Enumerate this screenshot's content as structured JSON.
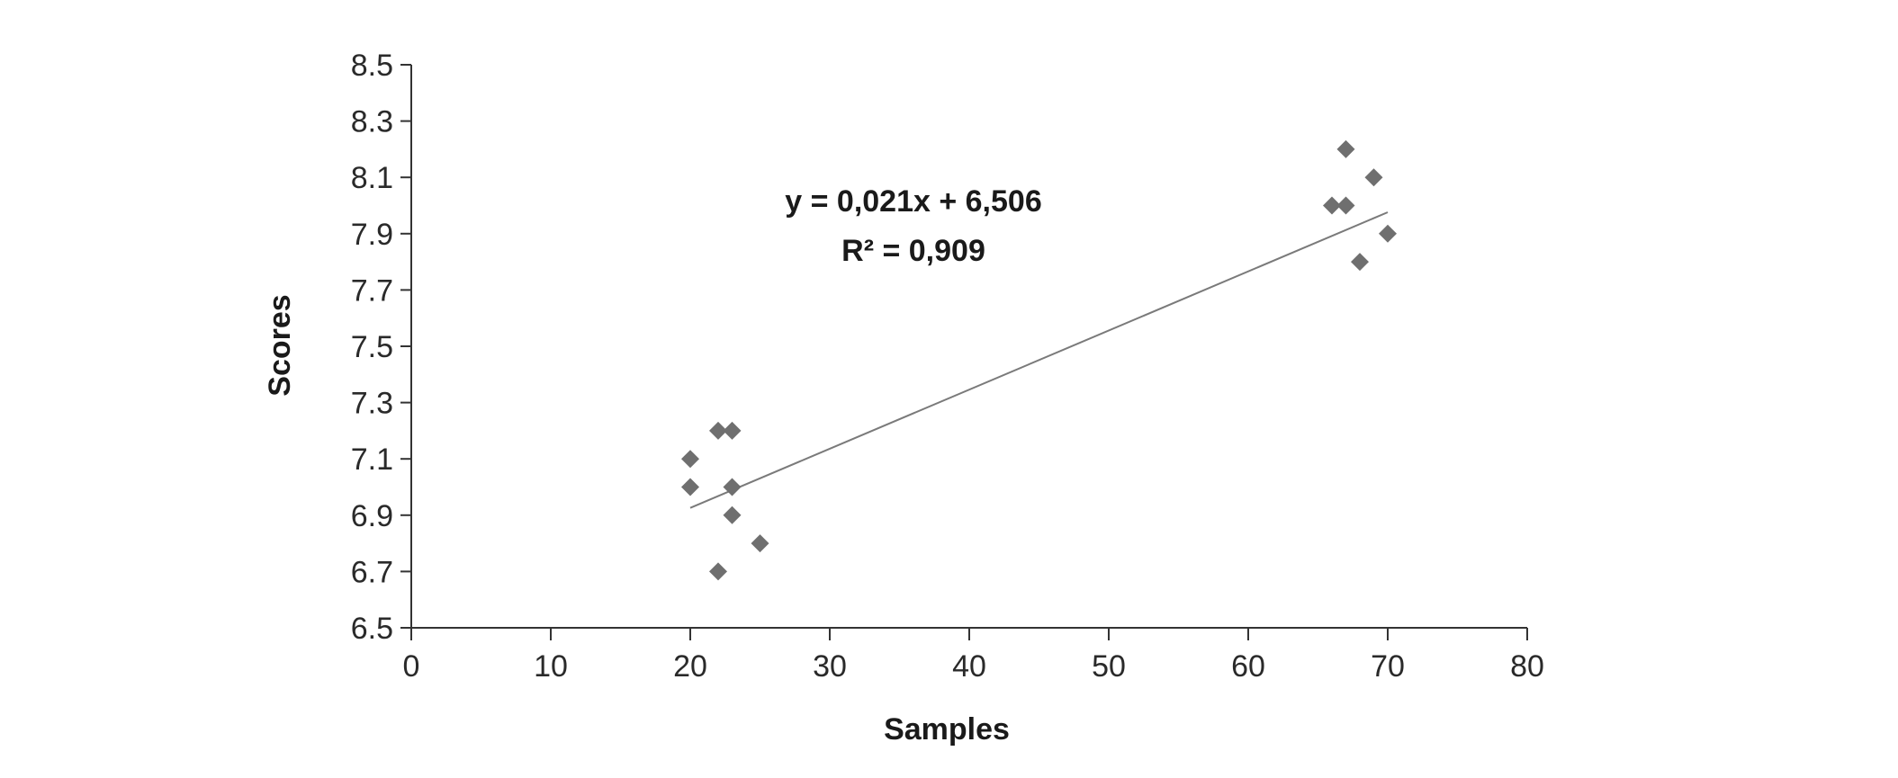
{
  "chart_data": {
    "type": "scatter",
    "title": "",
    "xlabel": "Samples",
    "ylabel": "Scores",
    "xlim": [
      0,
      80
    ],
    "ylim": [
      6.5,
      8.5
    ],
    "xticks": [
      "0",
      "10",
      "20",
      "30",
      "40",
      "50",
      "60",
      "70",
      "80"
    ],
    "yticks": [
      "6.5",
      "6.7",
      "6.9",
      "7.1",
      "7.3",
      "7.5",
      "7.7",
      "7.9",
      "8.1",
      "8.3",
      "8.5"
    ],
    "grid": false,
    "legend": "none",
    "marker": "diamond",
    "marker_color": "#6f6f6f",
    "trendline_color": "#7a7a7a",
    "points": [
      {
        "x": 20,
        "y": 7.1
      },
      {
        "x": 20,
        "y": 7.0
      },
      {
        "x": 22,
        "y": 7.2
      },
      {
        "x": 23,
        "y": 7.2
      },
      {
        "x": 23,
        "y": 7.0
      },
      {
        "x": 23,
        "y": 6.9
      },
      {
        "x": 22,
        "y": 6.7
      },
      {
        "x": 25,
        "y": 6.8
      },
      {
        "x": 66,
        "y": 8.0
      },
      {
        "x": 67,
        "y": 8.2
      },
      {
        "x": 67,
        "y": 8.0
      },
      {
        "x": 68,
        "y": 7.8
      },
      {
        "x": 69,
        "y": 8.1
      },
      {
        "x": 70,
        "y": 7.9
      }
    ],
    "trendline": {
      "x_start": 20,
      "x_end": 70,
      "slope": 0.021,
      "intercept": 6.506
    },
    "annotations": {
      "equation": "y = 0,021x + 6,506",
      "r_squared": "R² = 0,909"
    }
  }
}
